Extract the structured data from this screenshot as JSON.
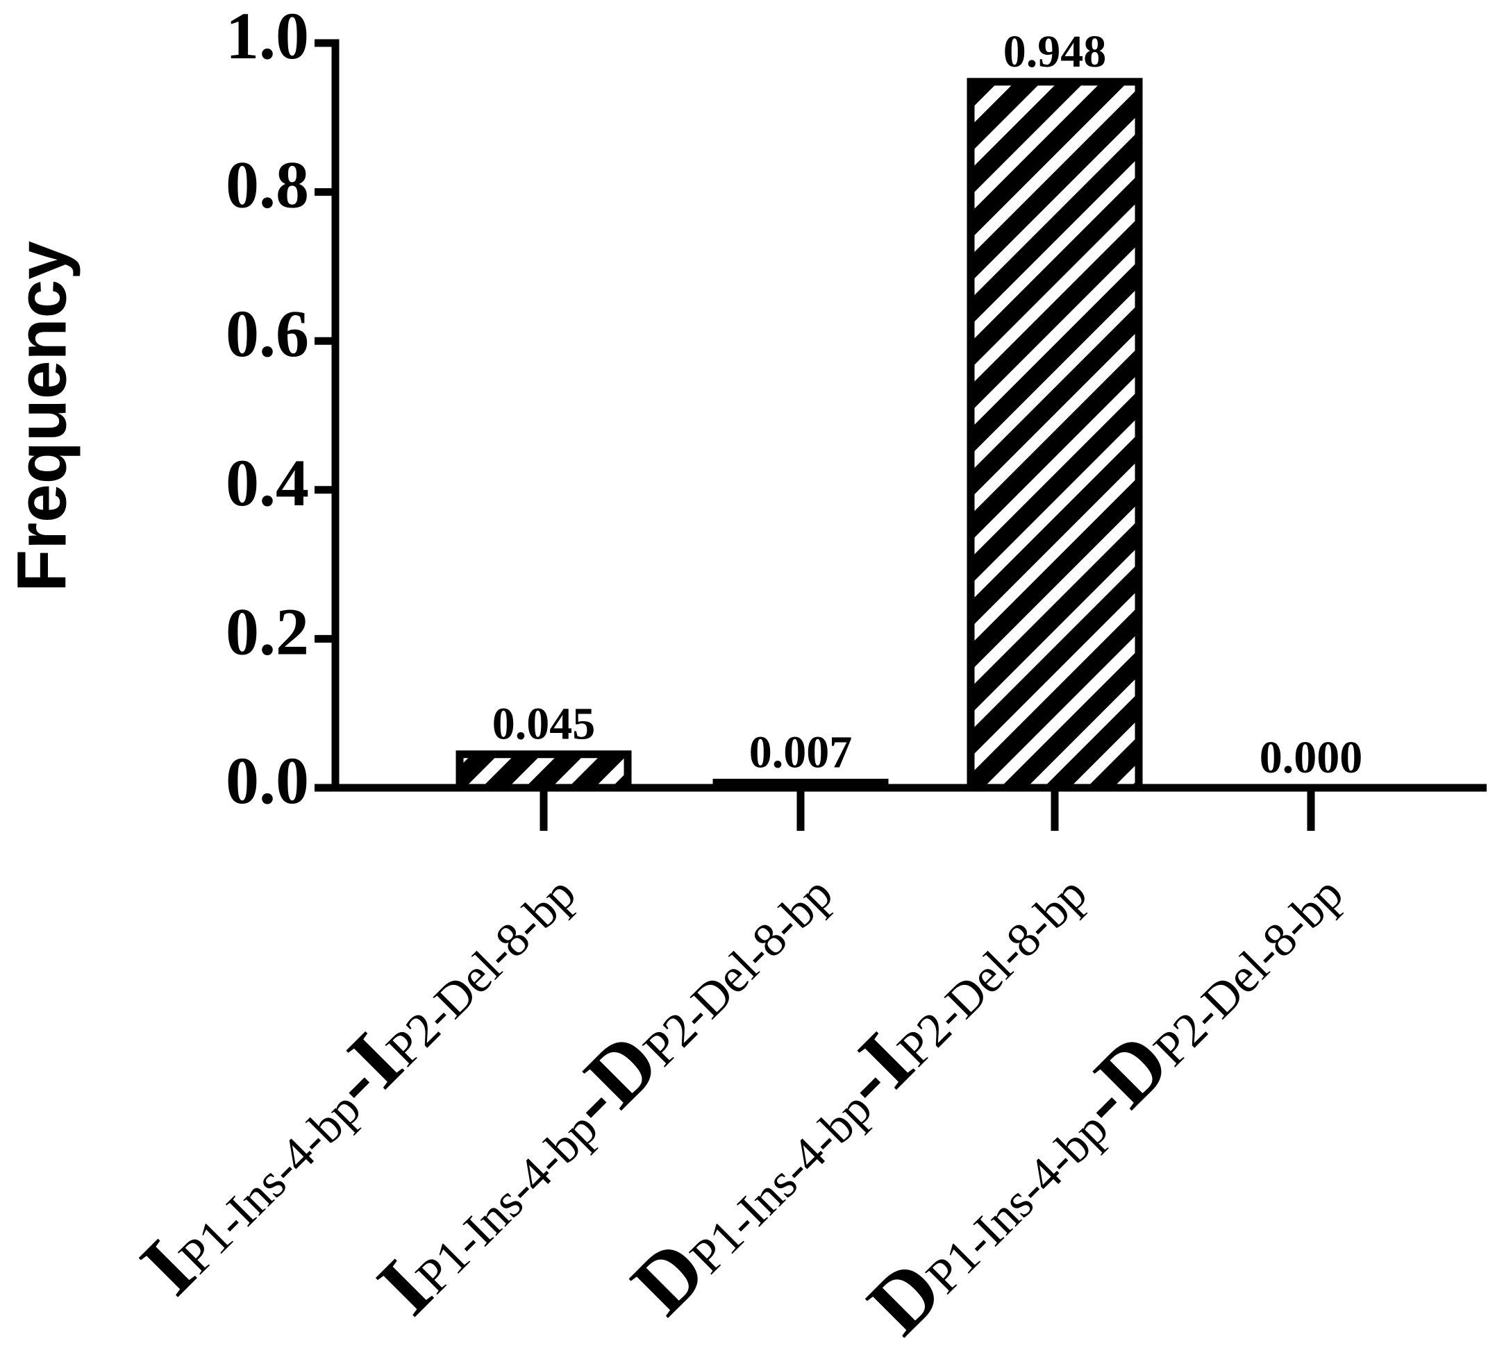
{
  "chart_data": {
    "type": "bar",
    "ylabel": "Frequency",
    "categories": [
      [
        "I",
        "P1-Ins-4-bp",
        "-I",
        "P2-Del-8-bp"
      ],
      [
        "I",
        "P1-Ins-4-bp",
        "-D",
        "P2-Del-8-bp"
      ],
      [
        "D",
        "P1-Ins-4-bp",
        "-I",
        "P2-Del-8-bp"
      ],
      [
        "D",
        "P1-Ins-4-bp",
        "-D",
        "P2-Del-8-bp"
      ]
    ],
    "values": [
      0.045,
      0.007,
      0.948,
      0.0
    ],
    "value_labels": [
      "0.045",
      "0.007",
      "0.948",
      "0.000"
    ],
    "color": "#000000",
    "hatch": true,
    "ylim": [
      0,
      1
    ],
    "yticks": [
      {
        "value": 0,
        "label": "0.0"
      },
      0.2,
      0.4,
      0.6,
      0.8,
      {
        "value": 1,
        "label": "1.0"
      }
    ]
  }
}
